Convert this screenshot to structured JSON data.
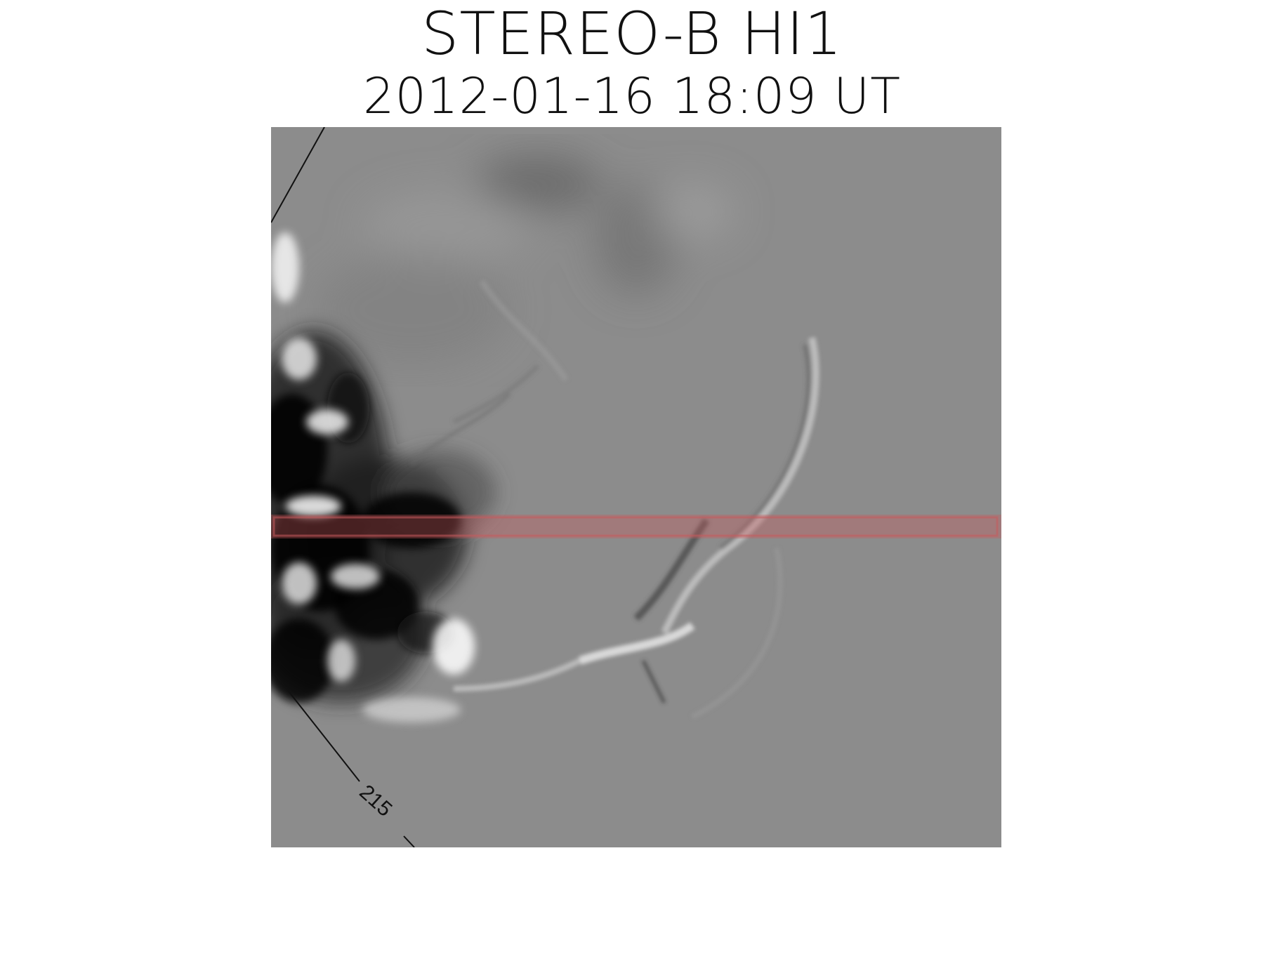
{
  "header": {
    "instrument": "STEREO-B HI1",
    "timestamp": "2012-01-16 18:09 UT"
  },
  "image": {
    "description_icon": "solar-corona-difference-image-icon",
    "background_color": "#8c8c8c",
    "highlight_color": "#c9595d",
    "angle_label": "215"
  }
}
